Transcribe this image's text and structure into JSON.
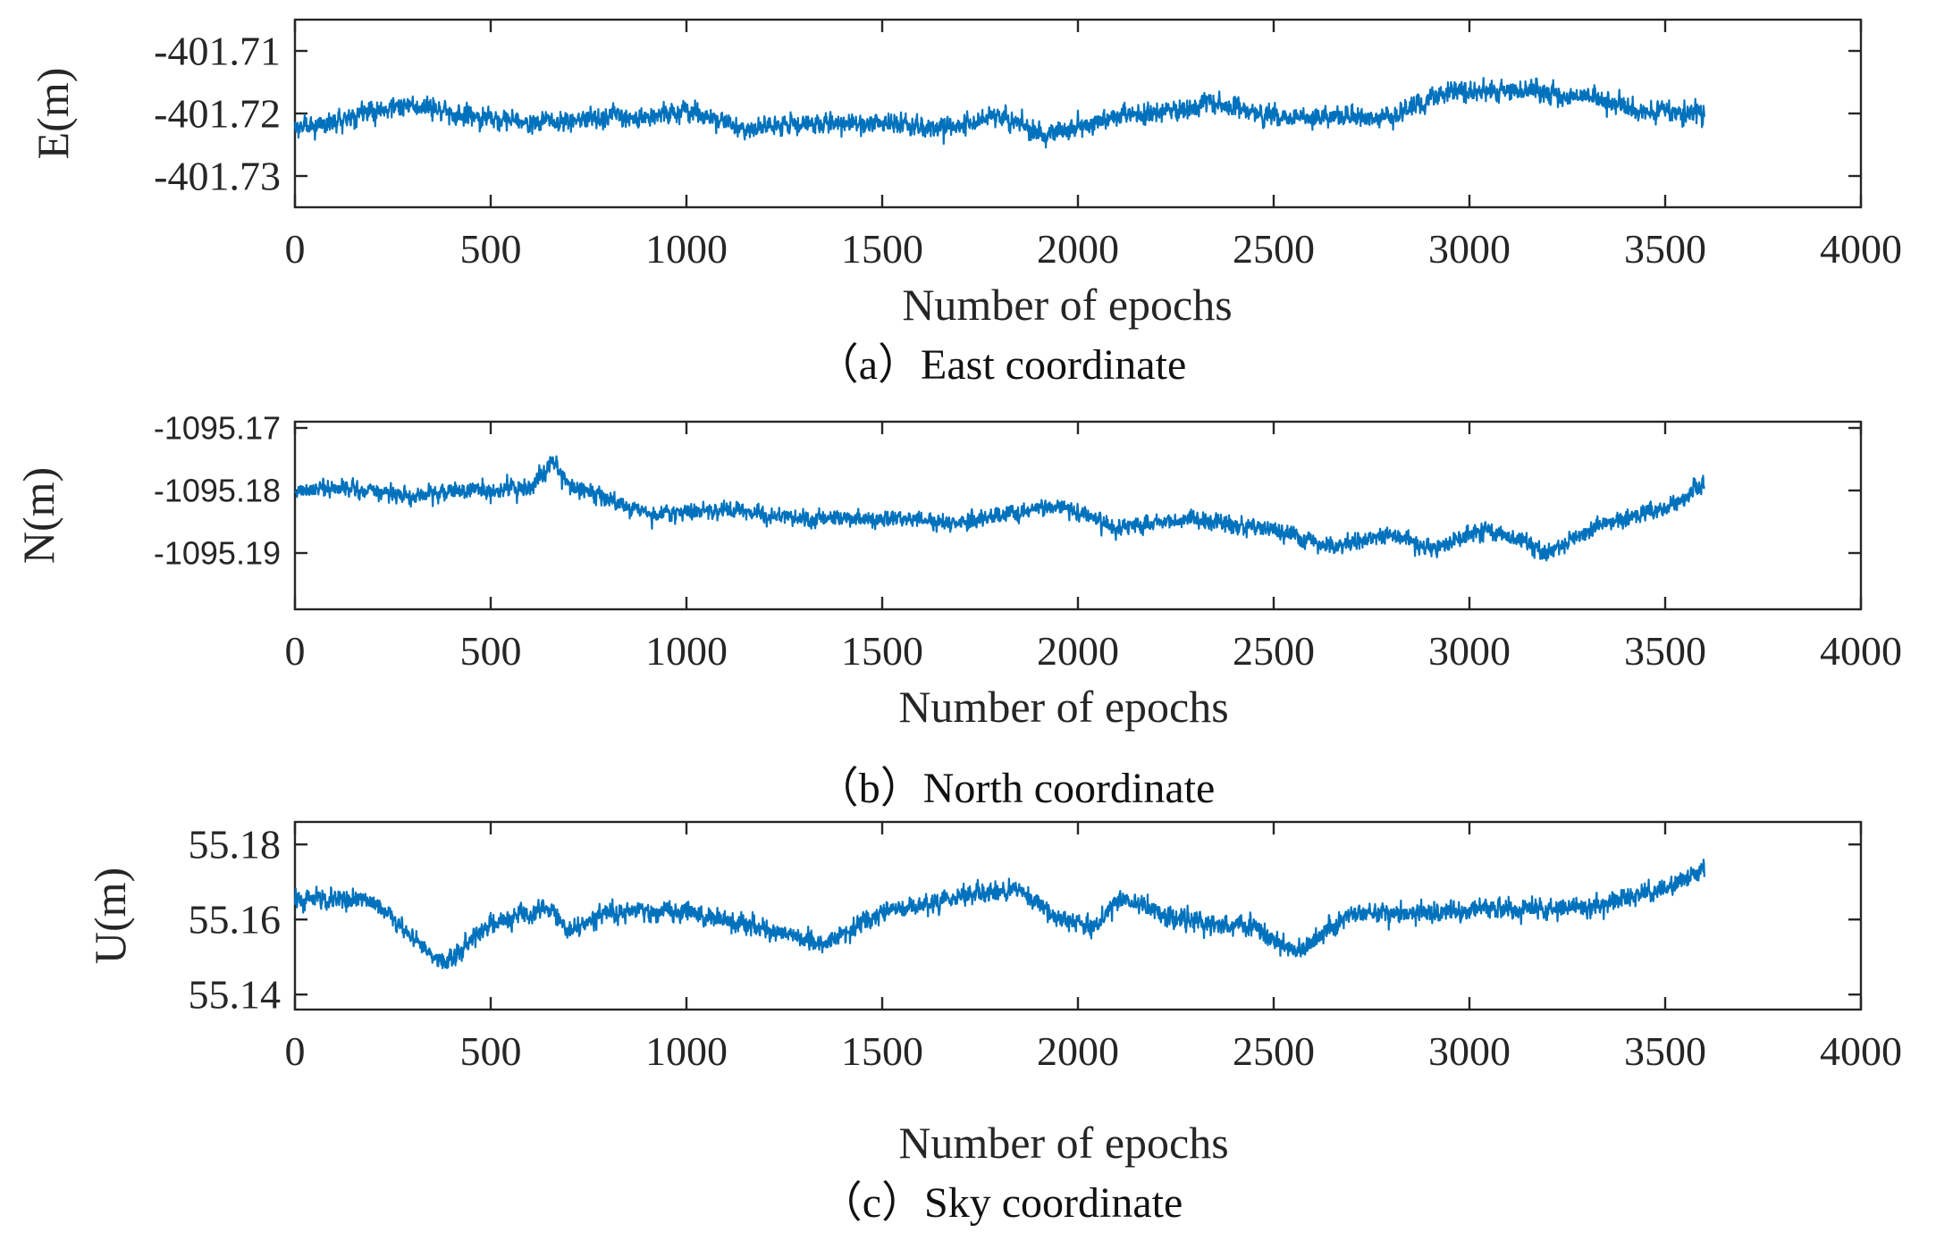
{
  "chart_data": [
    {
      "type": "line",
      "panel": "a",
      "caption": "（a）East coordinate",
      "xlabel": "Number of epochs",
      "ylabel": "E(m)",
      "xlim": [
        0,
        4000
      ],
      "ylim": [
        -401.735,
        -401.705
      ],
      "xticks": [
        0,
        500,
        1000,
        1500,
        2000,
        2500,
        3000,
        3500,
        4000
      ],
      "xtick_labels": [
        "0",
        "500",
        "1000",
        "1500",
        "2000",
        "2500",
        "3000",
        "3500",
        "4000"
      ],
      "yticks": [
        -401.71,
        -401.72,
        -401.73
      ],
      "ytick_labels": [
        "-401.71",
        "-401.72",
        "-401.73"
      ],
      "series": [
        {
          "name": "E",
          "color": "#0072BD",
          "n_epochs": 3600,
          "noise": 0.0015,
          "trend": [
            [
              0,
              -401.7225
            ],
            [
              150,
              -401.7205
            ],
            [
              300,
              -401.7185
            ],
            [
              450,
              -401.7205
            ],
            [
              600,
              -401.7215
            ],
            [
              750,
              -401.7205
            ],
            [
              900,
              -401.7205
            ],
            [
              1000,
              -401.7195
            ],
            [
              1150,
              -401.7225
            ],
            [
              1300,
              -401.7215
            ],
            [
              1500,
              -401.7215
            ],
            [
              1650,
              -401.7225
            ],
            [
              1800,
              -401.7205
            ],
            [
              1920,
              -401.7235
            ],
            [
              2100,
              -401.7205
            ],
            [
              2250,
              -401.7195
            ],
            [
              2350,
              -401.7185
            ],
            [
              2500,
              -401.7205
            ],
            [
              2650,
              -401.7205
            ],
            [
              2800,
              -401.7205
            ],
            [
              2950,
              -401.7165
            ],
            [
              3150,
              -401.7165
            ],
            [
              3300,
              -401.7175
            ],
            [
              3450,
              -401.7195
            ],
            [
              3600,
              -401.72
            ]
          ]
        }
      ]
    },
    {
      "type": "line",
      "panel": "b",
      "caption": "（b）North coordinate",
      "xlabel": "Number of epochs",
      "ylabel": "N(m)",
      "xlim": [
        0,
        4000
      ],
      "ylim": [
        -1095.199,
        -1095.169
      ],
      "xticks": [
        0,
        500,
        1000,
        1500,
        2000,
        2500,
        3000,
        3500,
        4000
      ],
      "xtick_labels": [
        "0",
        "500",
        "1000",
        "1500",
        "2000",
        "2500",
        "3000",
        "3500",
        "4000"
      ],
      "yticks": [
        -1095.17,
        -1095.18,
        -1095.19
      ],
      "ytick_labels": [
        "-1095.17",
        "-1095.18",
        "-1095.19"
      ],
      "series": [
        {
          "name": "N",
          "color": "#0072BD",
          "n_epochs": 3600,
          "noise": 0.0013,
          "trend": [
            [
              0,
              -1095.18
            ],
            [
              150,
              -1095.1795
            ],
            [
              300,
              -1095.181
            ],
            [
              450,
              -1095.18
            ],
            [
              600,
              -1095.1795
            ],
            [
              660,
              -1095.1755
            ],
            [
              700,
              -1095.179
            ],
            [
              900,
              -1095.184
            ],
            [
              1100,
              -1095.183
            ],
            [
              1300,
              -1095.1845
            ],
            [
              1500,
              -1095.1845
            ],
            [
              1700,
              -1095.185
            ],
            [
              1950,
              -1095.1825
            ],
            [
              2100,
              -1095.186
            ],
            [
              2300,
              -1095.1845
            ],
            [
              2500,
              -1095.1865
            ],
            [
              2650,
              -1095.189
            ],
            [
              2800,
              -1095.187
            ],
            [
              2900,
              -1095.1895
            ],
            [
              3050,
              -1095.186
            ],
            [
              3200,
              -1095.19
            ],
            [
              3350,
              -1095.185
            ],
            [
              3500,
              -1095.183
            ],
            [
              3600,
              -1095.179
            ]
          ]
        }
      ]
    },
    {
      "type": "line",
      "panel": "c",
      "caption": "（c）Sky coordinate",
      "xlabel": "Number of epochs",
      "ylabel": "U(m)",
      "xlim": [
        0,
        4000
      ],
      "ylim": [
        55.136,
        55.186
      ],
      "xticks": [
        0,
        500,
        1000,
        1500,
        2000,
        2500,
        3000,
        3500,
        4000
      ],
      "xtick_labels": [
        "0",
        "500",
        "1000",
        "1500",
        "2000",
        "2500",
        "3000",
        "3500",
        "4000"
      ],
      "yticks": [
        55.18,
        55.16,
        55.14
      ],
      "ytick_labels": [
        "55.18",
        "55.16",
        "55.14"
      ],
      "series": [
        {
          "name": "U",
          "color": "#0072BD",
          "n_epochs": 3600,
          "noise": 0.0025,
          "trend": [
            [
              0,
              55.165
            ],
            [
              200,
              55.165
            ],
            [
              300,
              55.155
            ],
            [
              380,
              55.148
            ],
            [
              500,
              55.159
            ],
            [
              650,
              55.163
            ],
            [
              700,
              55.157
            ],
            [
              800,
              55.162
            ],
            [
              1000,
              55.162
            ],
            [
              1150,
              55.159
            ],
            [
              1350,
              55.153
            ],
            [
              1500,
              55.162
            ],
            [
              1700,
              55.166
            ],
            [
              1850,
              55.168
            ],
            [
              1950,
              55.16
            ],
            [
              2050,
              55.158
            ],
            [
              2100,
              55.166
            ],
            [
              2250,
              55.16
            ],
            [
              2450,
              55.158
            ],
            [
              2550,
              55.151
            ],
            [
              2700,
              55.162
            ],
            [
              2900,
              55.162
            ],
            [
              3100,
              55.163
            ],
            [
              3300,
              55.163
            ],
            [
              3500,
              55.168
            ],
            [
              3600,
              55.174
            ]
          ]
        }
      ]
    }
  ]
}
